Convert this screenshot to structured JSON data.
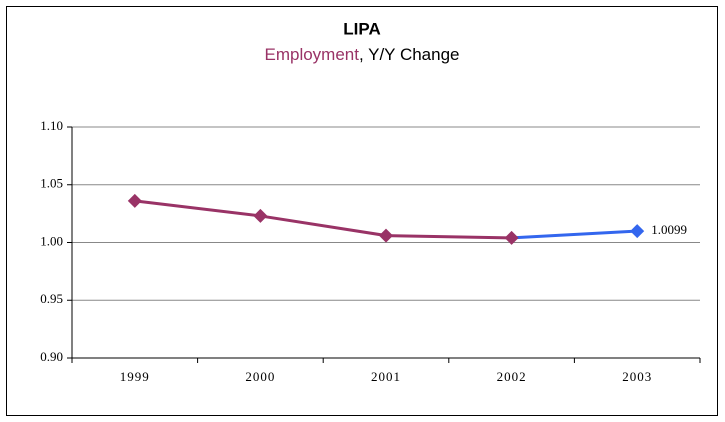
{
  "chart_data": {
    "type": "line",
    "title": "LIPA",
    "subtitle": [
      "Employment",
      ", Y/Y Change"
    ],
    "subtitle_colors": [
      "#993366",
      "#000000"
    ],
    "categories": [
      "1999",
      "2000",
      "2001",
      "2002",
      "2003"
    ],
    "series": [
      {
        "color": "#993366",
        "values": [
          1.036,
          1.023,
          1.006,
          1.004,
          null
        ]
      },
      {
        "color": "#3366ee",
        "values": [
          null,
          null,
          null,
          1.004,
          1.0099
        ],
        "value_labels": [
          null,
          null,
          null,
          null,
          "1.0099"
        ]
      }
    ],
    "ylim": [
      0.9,
      1.1
    ],
    "yticks": [
      {
        "value": 0.9,
        "label": "0.90"
      },
      {
        "value": 0.95,
        "label": "0.95"
      },
      {
        "value": 1,
        "label": "1.00"
      },
      {
        "value": 1.05,
        "label": "1.05"
      },
      {
        "value": 1.1,
        "label": "1.10"
      }
    ],
    "grid": true
  }
}
